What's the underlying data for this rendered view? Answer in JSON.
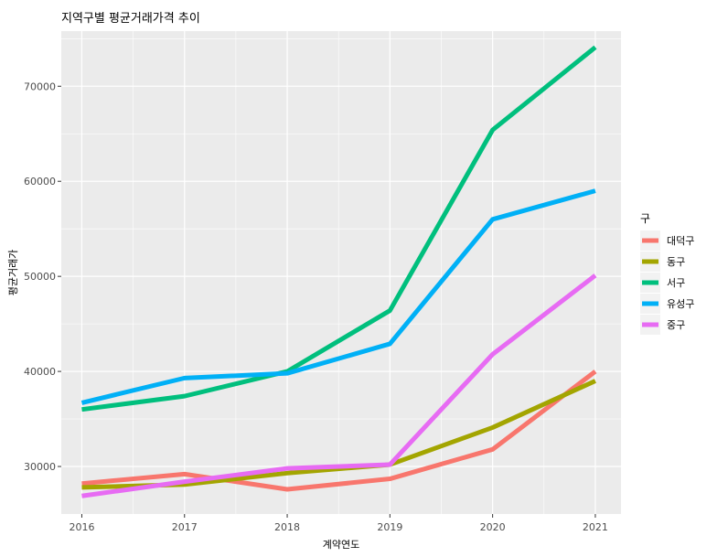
{
  "chart_data": {
    "type": "line",
    "title": "지역구별 평균거래가격 추이",
    "xlabel": "계약연도",
    "ylabel": "평균거래가",
    "x": [
      2016,
      2017,
      2018,
      2019,
      2020,
      2021
    ],
    "xlim": [
      2015.8,
      2021.25
    ],
    "ylim": [
      25000,
      75800
    ],
    "yticks": [
      30000,
      40000,
      50000,
      60000,
      70000
    ],
    "grid": true,
    "legend": {
      "title": "구",
      "placement": "right"
    },
    "series": [
      {
        "name": "대덕구",
        "color": "#F8766D",
        "values": [
          28200,
          29200,
          27600,
          28700,
          31800,
          40000
        ]
      },
      {
        "name": "동구",
        "color": "#A3A500",
        "values": [
          27800,
          28100,
          29300,
          30200,
          34100,
          39000
        ]
      },
      {
        "name": "서구",
        "color": "#00BF7D",
        "values": [
          36000,
          37400,
          40000,
          46400,
          65400,
          74100
        ]
      },
      {
        "name": "유성구",
        "color": "#00B0F6",
        "values": [
          36700,
          39300,
          39800,
          42900,
          56000,
          59000
        ]
      },
      {
        "name": "중구",
        "color": "#E76BF3",
        "values": [
          26900,
          28400,
          29800,
          30200,
          41800,
          50100
        ]
      }
    ]
  }
}
